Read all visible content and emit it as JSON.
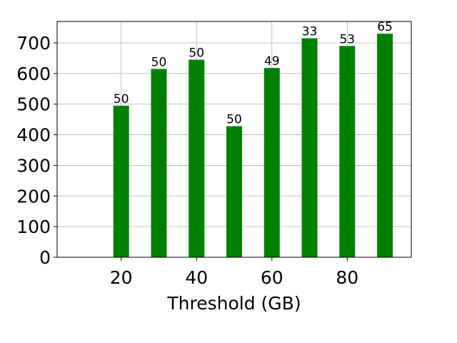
{
  "chart_data": {
    "type": "bar",
    "xlabel": "Threshold (GB)",
    "ylabel": "",
    "title": "",
    "x": [
      20,
      30,
      40,
      50,
      60,
      70,
      80,
      90
    ],
    "values": [
      495,
      615,
      645,
      428,
      618,
      715,
      690,
      730
    ],
    "bar_labels": [
      "50",
      "50",
      "50",
      "50",
      "49",
      "33",
      "53",
      "65"
    ],
    "xlim": [
      3,
      97
    ],
    "ylim": [
      0,
      770
    ],
    "xticks": [
      20,
      40,
      60,
      80
    ],
    "yticks": [
      0,
      100,
      200,
      300,
      400,
      500,
      600,
      700
    ],
    "bar_color": "#008000",
    "grid": true
  }
}
